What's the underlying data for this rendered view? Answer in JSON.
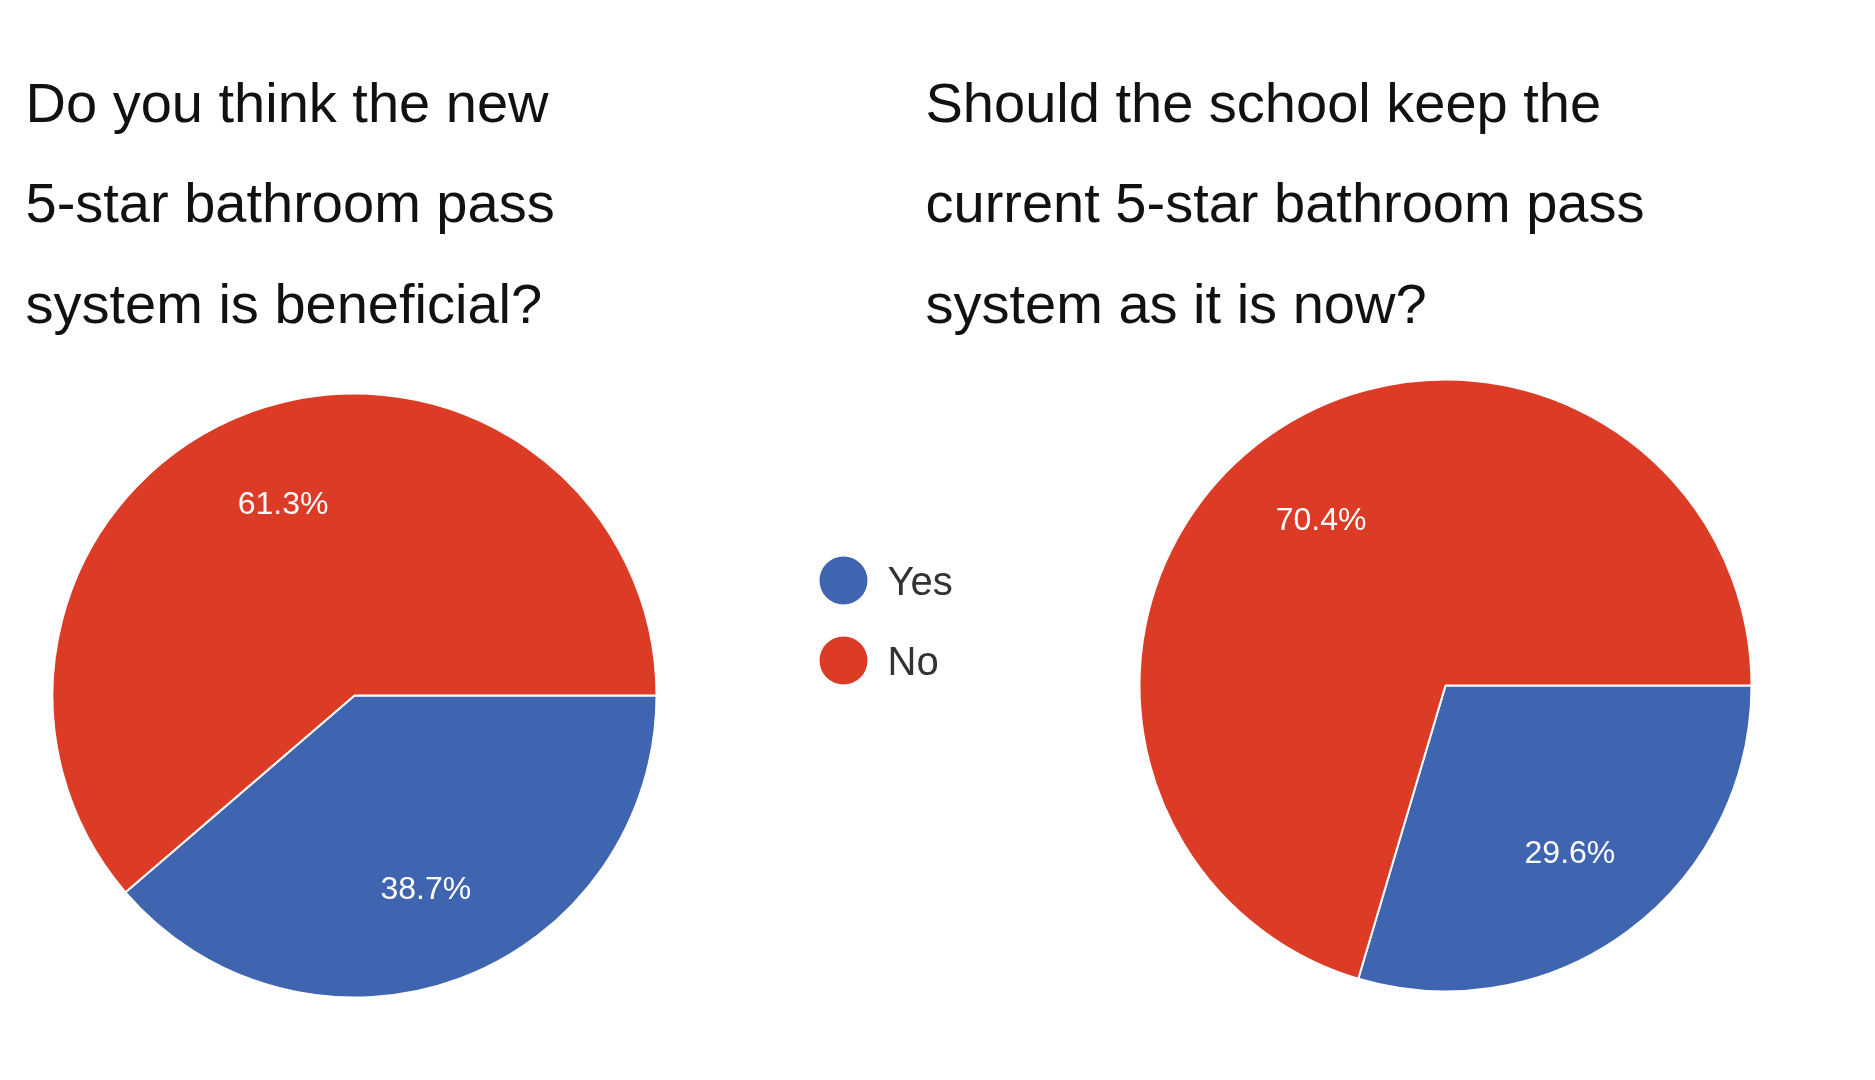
{
  "chart_data": [
    {
      "type": "pie",
      "title": "Do you think the new\n5-star bathroom pass\nsystem is beneficial?",
      "categories": [
        "Yes",
        "No"
      ],
      "values": [
        38.7,
        61.3
      ],
      "colors": [
        "#3f65b0",
        "#dc3b26"
      ],
      "value_labels": [
        "38.7%",
        "61.3%"
      ],
      "legend": "right"
    },
    {
      "type": "pie",
      "title": "Should the school keep the\ncurrent 5-star bathroom pass\nsystem as it is now?",
      "categories": [
        null,
        null
      ],
      "values": [
        29.6,
        70.4
      ],
      "colors": [
        "#3f65b0",
        "#dc3b26"
      ],
      "value_labels": [
        "29.6%",
        "70.4%"
      ]
    }
  ]
}
